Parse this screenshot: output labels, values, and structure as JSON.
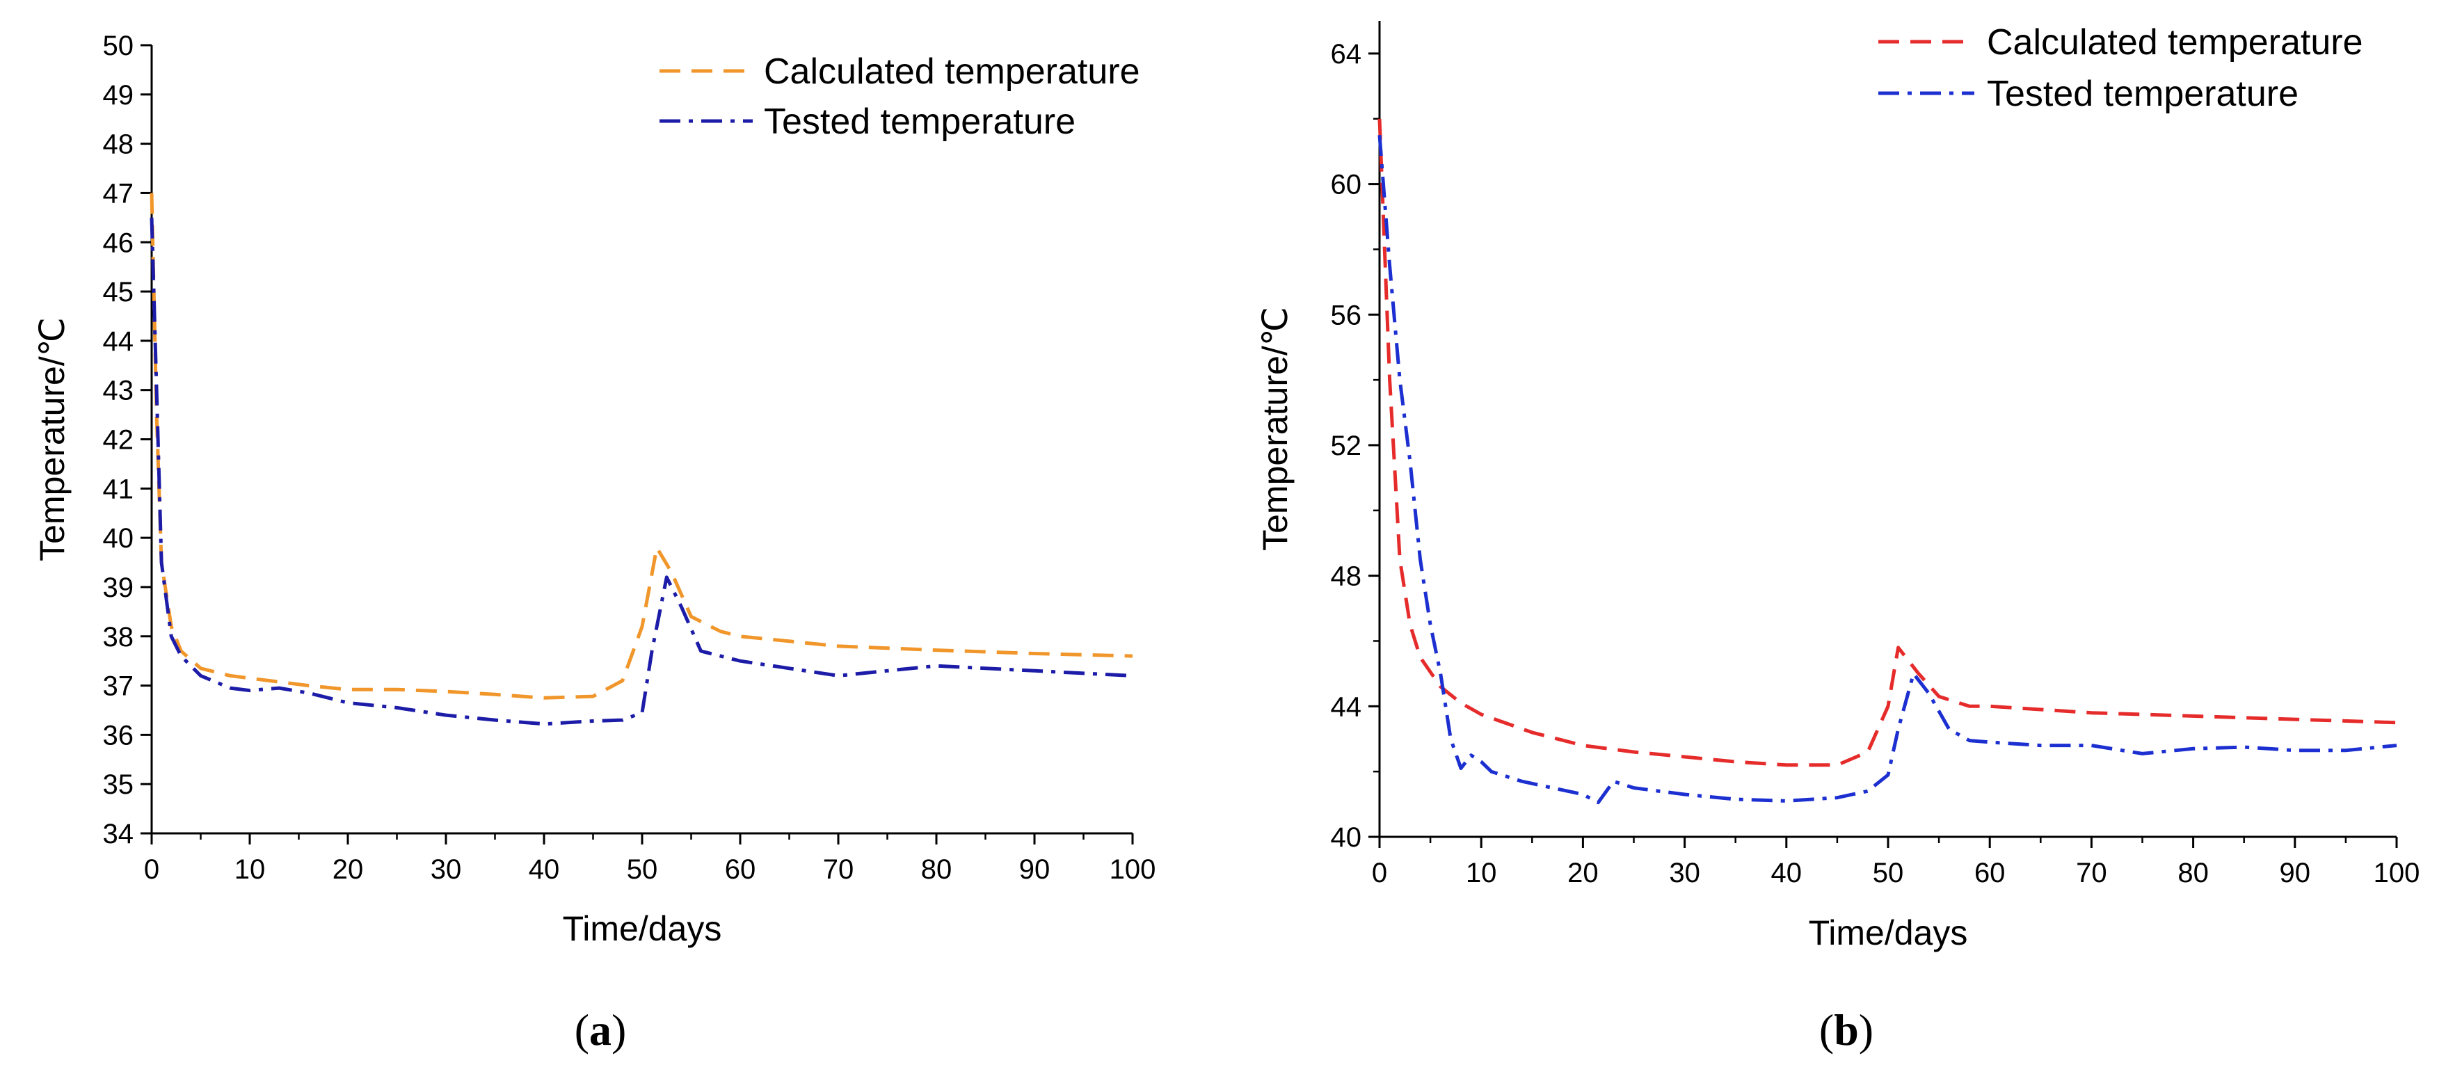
{
  "chart_data": [
    {
      "type": "line",
      "panel_label": "a",
      "title": "",
      "xlabel": "Time/days",
      "ylabel": "Temperature/℃",
      "xlim": [
        0,
        100
      ],
      "ylim": [
        34,
        50
      ],
      "x_ticks": [
        0,
        10,
        20,
        30,
        40,
        50,
        60,
        70,
        80,
        90,
        100
      ],
      "y_ticks": [
        34,
        35,
        36,
        37,
        38,
        39,
        40,
        41,
        42,
        43,
        44,
        45,
        46,
        47,
        48,
        49,
        50
      ],
      "legend_position": "top-right",
      "series": [
        {
          "name": "Calculated temperature",
          "color": "#f0962a",
          "dash": "dashed",
          "points": [
            [
              0,
              47.0
            ],
            [
              0.5,
              42.5
            ],
            [
              1,
              39.5
            ],
            [
              2,
              38.2
            ],
            [
              3,
              37.7
            ],
            [
              5,
              37.35
            ],
            [
              8,
              37.2
            ],
            [
              12,
              37.1
            ],
            [
              16,
              37.0
            ],
            [
              20,
              36.92
            ],
            [
              25,
              36.92
            ],
            [
              30,
              36.88
            ],
            [
              35,
              36.82
            ],
            [
              40,
              36.75
            ],
            [
              45,
              36.78
            ],
            [
              48,
              37.1
            ],
            [
              50,
              38.2
            ],
            [
              51.5,
              39.8
            ],
            [
              53,
              39.3
            ],
            [
              55,
              38.4
            ],
            [
              58,
              38.1
            ],
            [
              60,
              38.0
            ],
            [
              65,
              37.9
            ],
            [
              70,
              37.8
            ],
            [
              80,
              37.72
            ],
            [
              90,
              37.65
            ],
            [
              100,
              37.6
            ]
          ]
        },
        {
          "name": "Tested temperature",
          "color": "#1c1ca8",
          "dash": "dashdot",
          "points": [
            [
              0,
              46.5
            ],
            [
              0.5,
              43.0
            ],
            [
              1,
              39.5
            ],
            [
              2,
              38.0
            ],
            [
              3,
              37.6
            ],
            [
              5,
              37.2
            ],
            [
              8,
              36.95
            ],
            [
              10,
              36.9
            ],
            [
              13,
              36.95
            ],
            [
              16,
              36.85
            ],
            [
              20,
              36.65
            ],
            [
              25,
              36.55
            ],
            [
              30,
              36.4
            ],
            [
              35,
              36.3
            ],
            [
              40,
              36.22
            ],
            [
              45,
              36.28
            ],
            [
              48,
              36.3
            ],
            [
              50,
              36.45
            ],
            [
              51,
              37.7
            ],
            [
              52.5,
              39.2
            ],
            [
              54,
              38.6
            ],
            [
              56,
              37.7
            ],
            [
              60,
              37.5
            ],
            [
              65,
              37.35
            ],
            [
              70,
              37.2
            ],
            [
              75,
              37.3
            ],
            [
              80,
              37.4
            ],
            [
              85,
              37.35
            ],
            [
              90,
              37.3
            ],
            [
              95,
              37.25
            ],
            [
              100,
              37.2
            ]
          ]
        }
      ]
    },
    {
      "type": "line",
      "panel_label": "b",
      "title": "",
      "xlabel": "Time/days",
      "ylabel": "Temperature/℃",
      "xlim": [
        0,
        100
      ],
      "ylim": [
        40,
        65
      ],
      "x_ticks": [
        0,
        10,
        20,
        30,
        40,
        50,
        60,
        70,
        80,
        90,
        100
      ],
      "y_ticks": [
        40,
        44,
        48,
        52,
        56,
        60,
        64
      ],
      "legend_position": "top-right",
      "series": [
        {
          "name": "Calculated temperature",
          "color": "#e62b2b",
          "dash": "dashed",
          "points": [
            [
              0,
              62.0
            ],
            [
              0.5,
              58.0
            ],
            [
              1,
              54.0
            ],
            [
              2,
              48.5
            ],
            [
              3,
              46.5
            ],
            [
              4,
              45.5
            ],
            [
              6,
              44.6
            ],
            [
              8,
              44.1
            ],
            [
              10,
              43.75
            ],
            [
              15,
              43.2
            ],
            [
              20,
              42.8
            ],
            [
              25,
              42.6
            ],
            [
              30,
              42.45
            ],
            [
              35,
              42.3
            ],
            [
              40,
              42.2
            ],
            [
              45,
              42.2
            ],
            [
              48,
              42.6
            ],
            [
              50,
              44.0
            ],
            [
              51,
              45.8
            ],
            [
              53,
              45.0
            ],
            [
              55,
              44.3
            ],
            [
              58,
              44.0
            ],
            [
              60,
              44.0
            ],
            [
              70,
              43.8
            ],
            [
              80,
              43.7
            ],
            [
              90,
              43.6
            ],
            [
              100,
              43.5
            ]
          ]
        },
        {
          "name": "Tested temperature",
          "color": "#1c2fd0",
          "dash": "dashdot",
          "points": [
            [
              0,
              61.5
            ],
            [
              0.5,
              59.5
            ],
            [
              1,
              57.5
            ],
            [
              2,
              54.0
            ],
            [
              3,
              51.5
            ],
            [
              4,
              48.5
            ],
            [
              5,
              46.5
            ],
            [
              6,
              45.0
            ],
            [
              7,
              43.0
            ],
            [
              8,
              42.1
            ],
            [
              9,
              42.5
            ],
            [
              10,
              42.3
            ],
            [
              11,
              42.0
            ],
            [
              14,
              41.7
            ],
            [
              17,
              41.5
            ],
            [
              20,
              41.3
            ],
            [
              21.5,
              41.05
            ],
            [
              23,
              41.7
            ],
            [
              25,
              41.5
            ],
            [
              30,
              41.3
            ],
            [
              35,
              41.15
            ],
            [
              40,
              41.1
            ],
            [
              45,
              41.2
            ],
            [
              48,
              41.4
            ],
            [
              50,
              41.9
            ],
            [
              51,
              43.3
            ],
            [
              52.5,
              45.0
            ],
            [
              54,
              44.4
            ],
            [
              56,
              43.3
            ],
            [
              58,
              42.95
            ],
            [
              60,
              42.9
            ],
            [
              65,
              42.8
            ],
            [
              70,
              42.8
            ],
            [
              75,
              42.55
            ],
            [
              80,
              42.7
            ],
            [
              85,
              42.75
            ],
            [
              90,
              42.65
            ],
            [
              95,
              42.65
            ],
            [
              100,
              42.8
            ]
          ]
        }
      ]
    }
  ]
}
